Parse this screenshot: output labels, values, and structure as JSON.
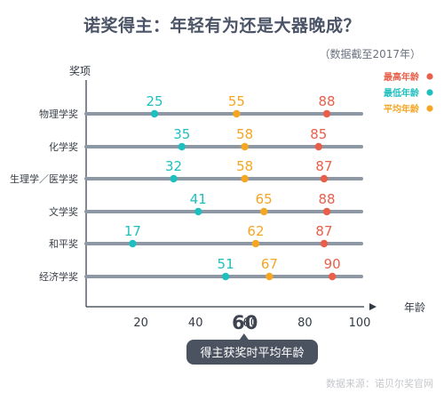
{
  "title": "诺奖得主：年轻有为还是大器晚成？",
  "subtitle": "（数据截至2017年）",
  "source": "数据来源：诺贝尔奖官网",
  "chart_data": {
    "type": "scatter",
    "ylabel": "奖项",
    "xlabel": "年龄",
    "xlim": [
      0,
      100
    ],
    "x_ticks": [
      "20",
      "40",
      "60",
      "80",
      "100"
    ],
    "categories": [
      "物理学奖",
      "化学奖",
      "生理学／医学奖",
      "文学奖",
      "和平奖",
      "经济学奖"
    ],
    "series": [
      {
        "name": "最高年龄",
        "color": "#e8604a",
        "values": [
          88,
          85,
          87,
          88,
          87,
          90
        ]
      },
      {
        "name": "最低年龄",
        "color": "#1fbfbf",
        "values": [
          25,
          35,
          32,
          41,
          17,
          51
        ]
      },
      {
        "name": "平均年龄",
        "color": "#f5a623",
        "values": [
          55,
          58,
          58,
          65,
          62,
          67
        ]
      }
    ],
    "overall_average": {
      "value": "60",
      "label": "得主获奖时平均年龄"
    },
    "legend": "top-right",
    "grid": false
  }
}
